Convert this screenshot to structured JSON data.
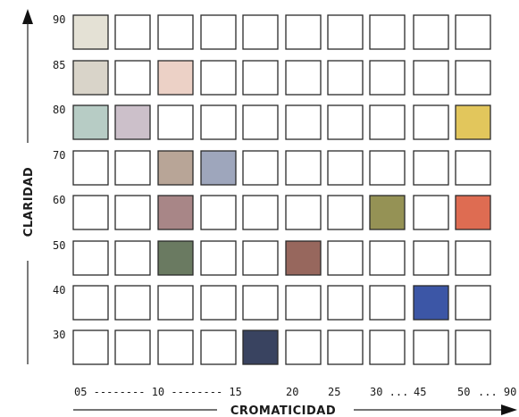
{
  "y_axis_title": "CLARIDAD",
  "x_axis_title": "CROMATICIDAD",
  "row_labels": [
    "90",
    "85",
    "80",
    "70",
    "60",
    "50",
    "40",
    "30"
  ],
  "x_tick_labels": [
    "05 -------- 10 -------- 15",
    "20",
    "25",
    "30 ...",
    "45",
    "50",
    "... 90"
  ],
  "columns": 10,
  "colored_cells": [
    {
      "row": 0,
      "col": 0,
      "color": "#e4e1d5"
    },
    {
      "row": 1,
      "col": 0,
      "color": "#d9d4c9"
    },
    {
      "row": 1,
      "col": 2,
      "color": "#ecd1c6"
    },
    {
      "row": 2,
      "col": 0,
      "color": "#b7ccc5"
    },
    {
      "row": 2,
      "col": 1,
      "color": "#ccc0ca"
    },
    {
      "row": 2,
      "col": 9,
      "color": "#e2c65c"
    },
    {
      "row": 3,
      "col": 2,
      "color": "#b8a597"
    },
    {
      "row": 3,
      "col": 3,
      "color": "#9ea6bc"
    },
    {
      "row": 4,
      "col": 2,
      "color": "#a88687"
    },
    {
      "row": 4,
      "col": 7,
      "color": "#959255"
    },
    {
      "row": 4,
      "col": 9,
      "color": "#de6c52"
    },
    {
      "row": 5,
      "col": 2,
      "color": "#6a7a61"
    },
    {
      "row": 5,
      "col": 5,
      "color": "#97675d"
    },
    {
      "row": 6,
      "col": 8,
      "color": "#3c56a6"
    },
    {
      "row": 7,
      "col": 4,
      "color": "#394360"
    }
  ]
}
